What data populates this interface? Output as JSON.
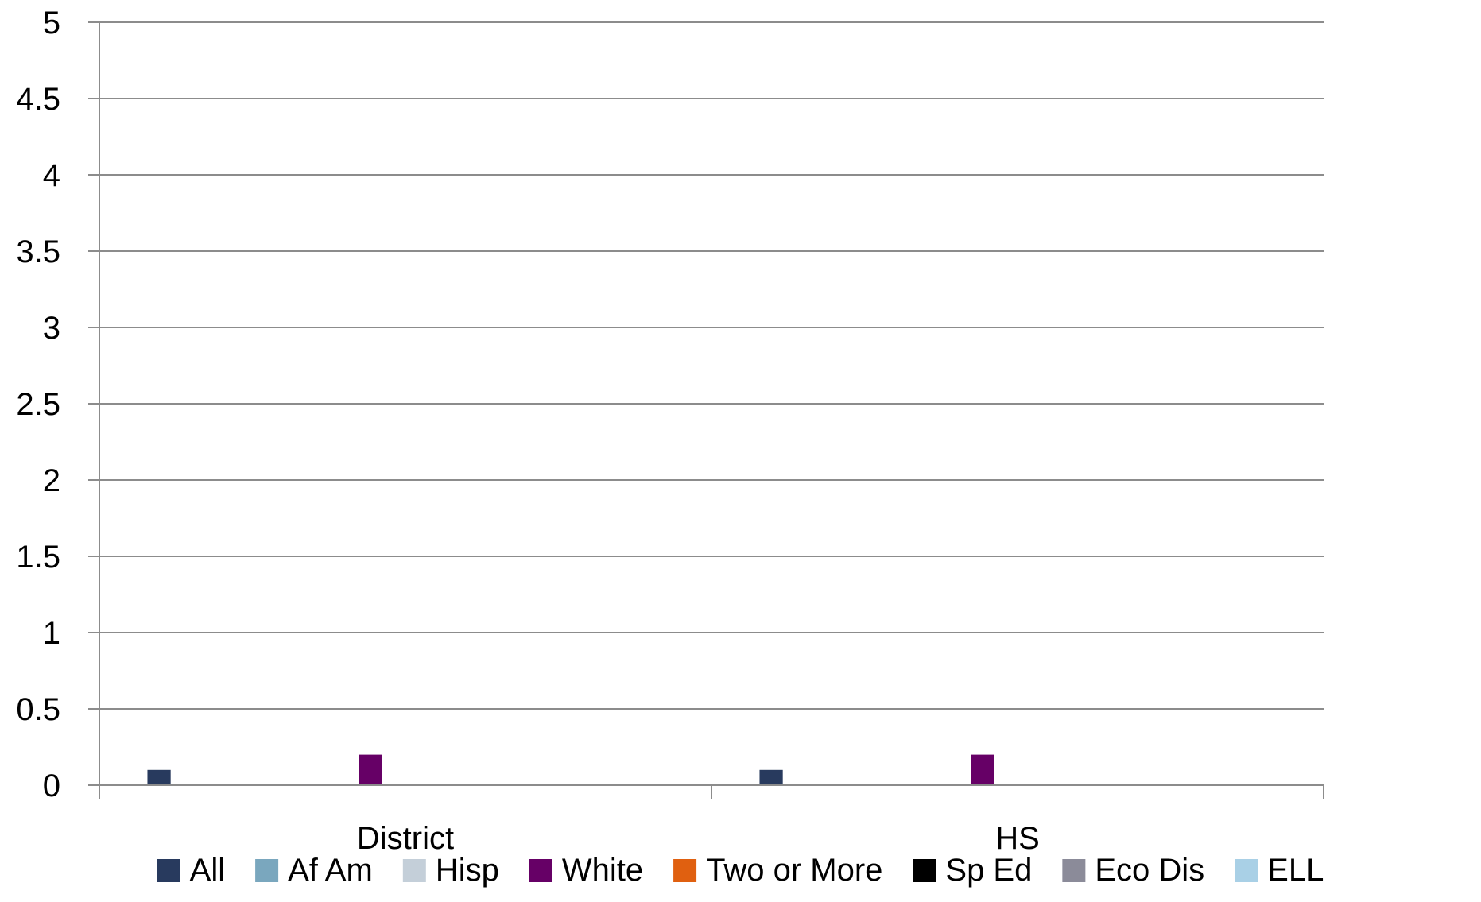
{
  "chart_data": {
    "type": "bar",
    "categories": [
      "District",
      "HS"
    ],
    "ylim": [
      0,
      5
    ],
    "yticks": [
      "0",
      "0.5",
      "1",
      "1.5",
      "2",
      "2.5",
      "3",
      "3.5",
      "4",
      "4.5",
      "5"
    ],
    "grid": true,
    "legend_position": "bottom",
    "series": [
      {
        "name": "All",
        "color": "#283a5e",
        "values": [
          0.1,
          0.1
        ]
      },
      {
        "name": "Af Am",
        "color": "#7aa7be",
        "values": [
          0,
          0
        ]
      },
      {
        "name": "Hisp",
        "color": "#c4cfd9",
        "values": [
          0,
          0
        ]
      },
      {
        "name": "White",
        "color": "#660066",
        "values": [
          0.2,
          0.2
        ]
      },
      {
        "name": "Two or More",
        "color": "#e06010",
        "values": [
          0,
          0
        ]
      },
      {
        "name": "Sp Ed",
        "color": "#000000",
        "values": [
          0,
          0
        ]
      },
      {
        "name": "Eco Dis",
        "color": "#8b8b99",
        "values": [
          0,
          0
        ]
      },
      {
        "name": "ELL",
        "color": "#a9d0e6",
        "values": [
          0,
          0
        ]
      }
    ]
  }
}
